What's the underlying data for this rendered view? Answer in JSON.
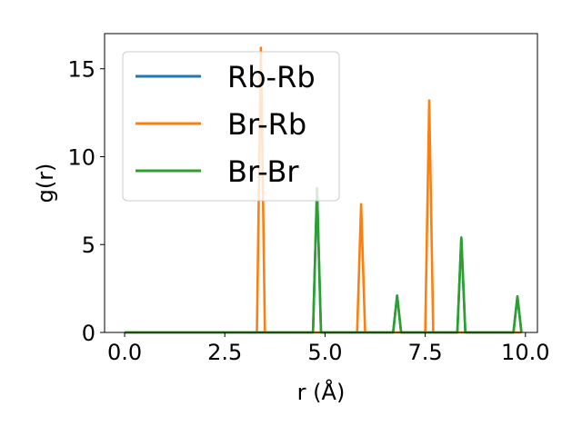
{
  "chart_data": {
    "type": "line",
    "xlabel": "r (Å)",
    "ylabel": "g(r)",
    "xlim": [
      -0.5,
      10.3
    ],
    "ylim": [
      0,
      17
    ],
    "xticks": [
      0.0,
      2.5,
      5.0,
      7.5,
      10.0
    ],
    "xtick_labels": [
      "0.0",
      "2.5",
      "5.0",
      "7.5",
      "10.0"
    ],
    "yticks": [
      0,
      5,
      10,
      15
    ],
    "ytick_labels": [
      "0",
      "5",
      "10",
      "15"
    ],
    "grid": false,
    "legend_position": "top-left",
    "series": [
      {
        "name": "Rb-Rb",
        "color": "#1f77b4",
        "x": [
          0.0,
          4.7,
          4.8,
          4.9,
          6.7,
          6.8,
          6.9,
          8.3,
          8.4,
          8.5,
          9.7,
          9.8,
          9.9
        ],
        "y": [
          0,
          0,
          8.2,
          0,
          0,
          2.1,
          0,
          0,
          5.4,
          0,
          0,
          2.05,
          0
        ]
      },
      {
        "name": "Br-Rb",
        "color": "#ff7f0e",
        "x": [
          0.0,
          3.3,
          3.4,
          3.5,
          5.8,
          5.9,
          6.0,
          7.5,
          7.6,
          7.7,
          9.9
        ],
        "y": [
          0,
          0,
          16.2,
          0,
          0,
          7.3,
          0,
          0,
          13.2,
          0,
          0
        ]
      },
      {
        "name": "Br-Br",
        "color": "#2ca02c",
        "x": [
          0.0,
          4.7,
          4.8,
          4.9,
          6.7,
          6.8,
          6.9,
          8.3,
          8.4,
          8.5,
          9.7,
          9.8,
          9.9
        ],
        "y": [
          0,
          0,
          8.2,
          0,
          0,
          2.1,
          0,
          0,
          5.4,
          0,
          0,
          2.05,
          0
        ]
      }
    ]
  }
}
